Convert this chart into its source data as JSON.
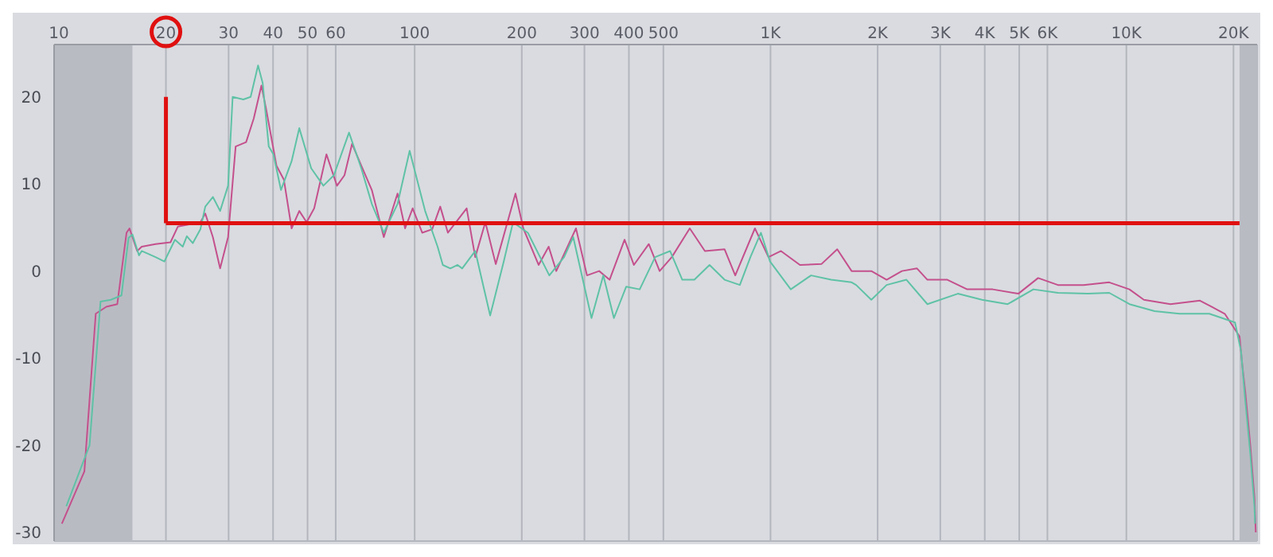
{
  "chart_data": {
    "type": "line",
    "log": "x",
    "grid": true,
    "marker": "none",
    "line_style": "solid",
    "xlim": [
      9.7,
      23300
    ],
    "ylim": [
      -31,
      26
    ],
    "xticks": [
      10,
      20,
      30,
      40,
      50,
      60,
      100,
      200,
      300,
      400,
      500,
      {
        "value": 1000,
        "label": "1K"
      },
      {
        "value": 2000,
        "label": "2K"
      },
      {
        "value": 3000,
        "label": "3K"
      },
      {
        "value": 4000,
        "label": "4K"
      },
      {
        "value": 5000,
        "label": "5K"
      },
      {
        "value": 6000,
        "label": "6K"
      },
      {
        "value": 10000,
        "label": "10K"
      },
      {
        "value": 20000,
        "label": "20K"
      }
    ],
    "yticks": [
      -30,
      -20,
      -10,
      0,
      10,
      20
    ],
    "bands": [
      {
        "axis": "x",
        "from": 9.7,
        "to": 16.1,
        "color": "#b9bbc3"
      },
      {
        "axis": "x",
        "from": 20800,
        "to": 23300,
        "color": "#b9bbc3"
      }
    ],
    "ref_lines": [
      {
        "axis": "x",
        "value": 20,
        "color": "#e01010"
      },
      {
        "axis": "y",
        "value": 5.5,
        "color": "#e01010"
      }
    ],
    "series": [
      {
        "color": "#c4508c",
        "x": [
          10.2,
          11.8,
          12.7,
          13.6,
          14.6,
          15.5,
          15.8,
          16.6,
          17.1,
          18.7,
          20.6,
          21.6,
          25.0,
          25.8,
          27.1,
          28.4,
          29.9,
          31.4,
          33.6,
          35.3,
          37.1,
          38.2,
          40.9,
          42.9,
          45.1,
          47.4,
          49.7,
          52.2,
          56.5,
          60.5,
          63.5,
          66.7,
          70.8,
          75.8,
          81.9,
          89.5,
          94,
          98.7,
          105,
          112,
          118,
          124,
          140,
          148,
          158,
          169,
          192,
          202,
          223,
          238,
          250,
          284,
          305,
          330,
          353,
          389,
          413,
          455,
          488,
          528,
          593,
          654,
          743,
          796,
          904,
          987,
          1070,
          1210,
          1390,
          1540,
          1690,
          1920,
          2120,
          2340,
          2580,
          2760,
          3140,
          3570,
          4210,
          4970,
          5650,
          6420,
          7580,
          8950,
          10200,
          11200,
          13300,
          16100,
          18900,
          20800,
          21200,
          21600,
          22300,
          22900,
          23100
        ],
        "values": [
          -29,
          -23,
          -4.9,
          -4.1,
          -3.8,
          4.4,
          4.9,
          2.3,
          2.8,
          3.1,
          3.3,
          5.1,
          5.6,
          6.6,
          3.9,
          0.3,
          3.9,
          14.3,
          14.8,
          17.5,
          21.3,
          18.7,
          12.1,
          10.5,
          4.9,
          6.9,
          5.6,
          7.2,
          13.4,
          9.8,
          11,
          14.6,
          12.1,
          9.3,
          3.9,
          8.9,
          4.9,
          7.2,
          4.4,
          4.8,
          7.4,
          4.4,
          7.2,
          1.6,
          5.6,
          0.8,
          8.9,
          4.9,
          0.7,
          2.8,
          0,
          4.9,
          -0.5,
          0,
          -1,
          3.6,
          0.7,
          3.1,
          0,
          1.6,
          4.9,
          2.3,
          2.5,
          -0.5,
          4.9,
          1.6,
          2.3,
          0.7,
          0.8,
          2.5,
          0,
          0,
          -1,
          0,
          0.3,
          -1,
          -1,
          -2.1,
          -2.1,
          -2.6,
          -0.8,
          -1.6,
          -1.6,
          -1.3,
          -2.1,
          -3.3,
          -3.8,
          -3.4,
          -4.9,
          -7.5,
          -11,
          -14,
          -20,
          -26,
          -30
        ]
      },
      {
        "color": "#5fc2a6",
        "x": [
          10.5,
          12.2,
          13.1,
          14.0,
          15.0,
          15.7,
          16.1,
          16.8,
          17.1,
          18.7,
          19.8,
          21.2,
          22.3,
          22.9,
          23.8,
          25.0,
          25.8,
          27.1,
          28.4,
          29.9,
          30.8,
          33.0,
          34.6,
          36.3,
          37.4,
          38.9,
          40.1,
          42.1,
          45.1,
          47.4,
          51.2,
          55.4,
          59.3,
          65.4,
          70.8,
          75.8,
          81.9,
          89.5,
          96.8,
          107,
          116,
          120,
          126,
          132,
          136,
          148,
          163,
          178,
          189,
          208,
          239,
          263,
          279,
          314,
          339,
          363,
          393,
          429,
          474,
          522,
          565,
          611,
          674,
          743,
          820,
          878,
          940,
          997,
          1140,
          1300,
          1480,
          1690,
          1740,
          1920,
          2120,
          2410,
          2760,
          3360,
          3930,
          4640,
          5480,
          6420,
          7800,
          8950,
          10200,
          12000,
          14100,
          17100,
          20200,
          21000,
          21600,
          22300,
          22900,
          23000
        ],
        "values": [
          -27,
          -20,
          -3.5,
          -3.3,
          -2.8,
          3.8,
          4.2,
          1.8,
          2.3,
          1.6,
          1.1,
          3.6,
          2.8,
          4.0,
          3.2,
          4.8,
          7.4,
          8.5,
          6.9,
          9.8,
          20,
          19.7,
          20,
          23.6,
          21.6,
          14.3,
          13.4,
          9.3,
          12.6,
          16.4,
          11.8,
          9.8,
          11,
          15.9,
          11.8,
          7.7,
          4.4,
          7.7,
          13.8,
          6.9,
          2.8,
          0.7,
          0.3,
          0.7,
          0.3,
          2.3,
          -5.1,
          1.1,
          5.6,
          4.4,
          -0.5,
          1.6,
          3.9,
          -5.4,
          -0.5,
          -5.4,
          -1.8,
          -2.1,
          1.6,
          2.3,
          -1,
          -1,
          0.7,
          -1,
          -1.6,
          1.6,
          4.4,
          1.1,
          -2.1,
          -0.5,
          -1,
          -1.3,
          -1.6,
          -3.3,
          -1.6,
          -1,
          -3.8,
          -2.6,
          -3.3,
          -3.8,
          -2.1,
          -2.5,
          -2.6,
          -2.5,
          -3.8,
          -4.6,
          -4.9,
          -4.9,
          -5.9,
          -9.2,
          -15,
          -21,
          -27,
          -29
        ]
      }
    ]
  }
}
